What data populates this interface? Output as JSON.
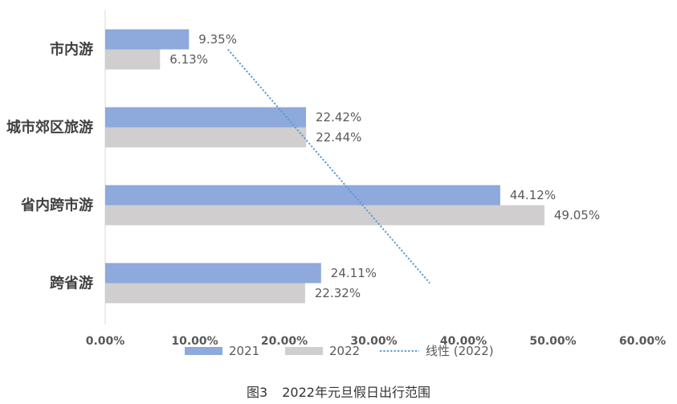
{
  "chart_data": {
    "type": "bar",
    "orientation": "horizontal",
    "categories": [
      "市内游",
      "城市郊区旅游",
      "省内跨市游",
      "跨省游"
    ],
    "series": [
      {
        "name": "2021",
        "color": "#8EA9DB",
        "values": [
          9.35,
          22.42,
          44.12,
          24.11
        ],
        "labels": [
          "9.35%",
          "22.42%",
          "44.12%",
          "24.11%"
        ]
      },
      {
        "name": "2022",
        "color": "#D0CECE",
        "values": [
          6.13,
          22.44,
          49.05,
          22.32
        ],
        "labels": [
          "6.13%",
          "22.44%",
          "49.05%",
          "22.32%"
        ]
      }
    ],
    "trendline": {
      "type": "linear",
      "series_index": 1,
      "name": "线性 (2022)",
      "color": "#5B9BD5"
    },
    "xlim": [
      0,
      60
    ],
    "x_ticks": [
      {
        "value": 0,
        "label": "0.00%"
      },
      {
        "value": 10,
        "label": "10.00%"
      },
      {
        "value": 20,
        "label": "20.00%"
      },
      {
        "value": 30,
        "label": "30.00%"
      },
      {
        "value": 40,
        "label": "40.00%"
      },
      {
        "value": 50,
        "label": "50.00%"
      },
      {
        "value": 60,
        "label": "60.00%"
      }
    ],
    "grid": false,
    "legend_position": "bottom"
  },
  "caption": {
    "label": "图3",
    "text": "2022年元旦假日出行范围"
  }
}
